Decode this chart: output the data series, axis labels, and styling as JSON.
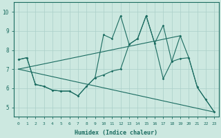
{
  "xlabel": "Humidex (Indice chaleur)",
  "xlim": [
    -0.5,
    23.5
  ],
  "ylim": [
    4.5,
    10.5
  ],
  "yticks": [
    5,
    6,
    7,
    8,
    9,
    10
  ],
  "xticks": [
    0,
    1,
    2,
    3,
    4,
    5,
    6,
    7,
    8,
    9,
    10,
    11,
    12,
    13,
    14,
    15,
    16,
    17,
    18,
    19,
    20,
    21,
    22,
    23
  ],
  "bg_color": "#cce8e0",
  "line_color": "#1a6b60",
  "grid_color": "#aacfc8",
  "line1": {
    "x": [
      0,
      1,
      2,
      3,
      4,
      5,
      6,
      7,
      8,
      9,
      10,
      11,
      12,
      13,
      14,
      15,
      16,
      17,
      18,
      19,
      20,
      21,
      22,
      23
    ],
    "y": [
      7.5,
      7.6,
      6.2,
      6.1,
      5.9,
      5.85,
      5.85,
      5.6,
      6.1,
      6.55,
      6.7,
      6.9,
      7.0,
      8.3,
      8.6,
      9.8,
      8.35,
      9.3,
      7.4,
      7.55,
      7.6,
      6.05,
      5.4,
      4.75
    ]
  },
  "line2": {
    "x": [
      0,
      1,
      2,
      3,
      4,
      5,
      6,
      7,
      8,
      9,
      10,
      11,
      12,
      13,
      14,
      15,
      16,
      17,
      18,
      19,
      20,
      21,
      22,
      23
    ],
    "y": [
      7.5,
      7.6,
      6.2,
      6.1,
      5.9,
      5.85,
      5.85,
      5.6,
      6.1,
      6.55,
      8.8,
      8.6,
      9.8,
      8.3,
      8.6,
      9.8,
      8.35,
      6.5,
      7.4,
      8.75,
      7.6,
      6.05,
      5.4,
      4.75
    ]
  },
  "trend_up": {
    "x": [
      0,
      19
    ],
    "y": [
      7.0,
      8.75
    ]
  },
  "trend_down": {
    "x": [
      0,
      23
    ],
    "y": [
      7.0,
      4.75
    ]
  }
}
